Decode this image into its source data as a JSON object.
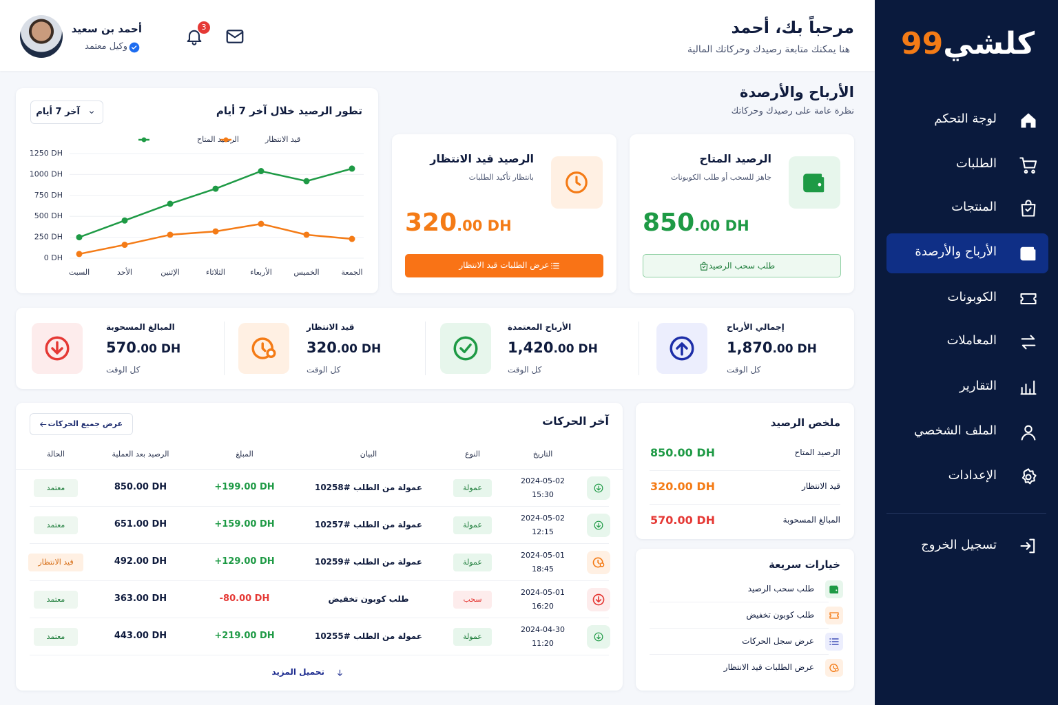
{
  "sidebar": {
    "logo": "كلشي",
    "logo_number": "99",
    "nav": [
      "لوجة التحكم",
      "الطلبات",
      "المنتجات",
      "الأرباح والأرصدة",
      "الكوبونات",
      "المعاملات",
      "التقارير",
      "الملف الشخصي",
      "الإعدادات"
    ],
    "logout": "تسجيل الخروج"
  },
  "header": {
    "greeting": "مرحباً بك، أحمد",
    "subtitle": "هنا يمكنك متابعة رصيدك وحركاتك المالية",
    "user_name": "أحمد بن سعيد",
    "user_role": "وكيل معتمد",
    "notifications": 3
  },
  "section": {
    "title": "الأرباح والأرصدة",
    "subtitle": "نظرة عامة على رصيدك وحركاتك"
  },
  "balance_cards": [
    {
      "title": "الرصيد المتاح",
      "description": "جاهز للسحب أو طلب الكوبونات",
      "amount": "850",
      "amount_suffix": ".00 DH",
      "button": "طلب سحب الرصيد"
    },
    {
      "title": "الرصيد قيد الانتظار",
      "description": "بانتظار تأكيد الطلبات",
      "amount": "320",
      "amount_suffix": ".00 DH",
      "button": "عرض الطلبات قيد الانتظار"
    }
  ],
  "chart_data": {
    "type": "line",
    "title": "تطور الرصيد خلال آخر 7 أيام",
    "filter": "آخر 7 أيام",
    "categories": [
      "السبت",
      "الأحد",
      "الإثنين",
      "الثلاثاء",
      "الأربعاء",
      "الخميس",
      "الجمعة"
    ],
    "series": [
      {
        "name": "الرصيد المتاح",
        "color": "#1e9a45",
        "values": [
          250,
          450,
          650,
          830,
          1040,
          920,
          1070
        ]
      },
      {
        "name": "قيد الانتظار",
        "color": "#f47b16",
        "values": [
          50,
          160,
          280,
          320,
          410,
          280,
          230
        ]
      }
    ],
    "ylim": [
      0,
      1250
    ],
    "yticks": [
      {
        "value": 0,
        "label": "0 DH"
      },
      {
        "value": 250,
        "label": "250 DH"
      },
      {
        "value": 500,
        "label": "500 DH"
      },
      {
        "value": 750,
        "label": "750 DH"
      },
      {
        "value": 1000,
        "label": "1000 DH"
      },
      {
        "value": 1250,
        "label": "1250 DH"
      }
    ],
    "grid": true,
    "legend": "top"
  },
  "stats": [
    {
      "title": "إجمالي الأرباح",
      "amount": "1,870",
      "amount_suffix": ".00 DH",
      "note": "كل الوقت"
    },
    {
      "title": "الأرباح المعتمدة",
      "amount": "1,420",
      "amount_suffix": ".00 DH",
      "note": "كل الوقت"
    },
    {
      "title": "قيد الانتظار",
      "amount": "320",
      "amount_suffix": ".00 DH",
      "note": "كل الوقت"
    },
    {
      "title": "المبالغ المسحوبة",
      "amount": "570",
      "amount_suffix": ".00 DH",
      "note": "كل الوقت"
    }
  ],
  "transactions": {
    "title": "آخر الحركات",
    "view_all": "عرض جميع الحركات",
    "headers": [
      "التاريخ",
      "النوع",
      "البيان",
      "المبلغ",
      "الرصيد بعد العملية",
      "الحالة"
    ],
    "rows": [
      {
        "date": "2024-05-02",
        "time": "15:30",
        "type": "عمولة",
        "description": "عمولة من الطلب #10258",
        "amount": "+199.00 DH",
        "balance": "850.00 DH",
        "status": "معتمد"
      },
      {
        "date": "2024-05-02",
        "time": "12:15",
        "type": "عمولة",
        "description": "عمولة من الطلب #10257",
        "amount": "+159.00 DH",
        "balance": "651.00 DH",
        "status": "معتمد"
      },
      {
        "date": "2024-05-01",
        "time": "18:45",
        "type": "عمولة",
        "description": "عمولة من الطلب #10259",
        "amount": "+129.00 DH",
        "balance": "492.00 DH",
        "status": "قيد الانتظار"
      },
      {
        "date": "2024-05-01",
        "time": "16:20",
        "type": "سحب",
        "description": "طلب كوبون تخفيض",
        "amount": "-80.00 DH",
        "balance": "363.00 DH",
        "status": "معتمد"
      },
      {
        "date": "2024-04-30",
        "time": "11:20",
        "type": "عمولة",
        "description": "عمولة من الطلب #10255",
        "amount": "+219.00 DH",
        "balance": "443.00 DH",
        "status": "معتمد"
      }
    ],
    "load_more": "تحميل المزيد"
  },
  "summary": {
    "title": "ملخص الرصيد",
    "rows": [
      {
        "label": "الرصيد المتاح",
        "value": "850.00 DH"
      },
      {
        "label": "قيد الانتظار",
        "value": "320.00 DH"
      },
      {
        "label": "المبالغ المسحوبة",
        "value": "570.00 DH"
      }
    ]
  },
  "quick_actions": {
    "title": "خيارات سريعة",
    "items": [
      "طلب سحب الرصيد",
      "طلب كوبون تخفيض",
      "عرض سجل الحركات",
      "عرض الطلبات قيد الانتظار"
    ]
  }
}
